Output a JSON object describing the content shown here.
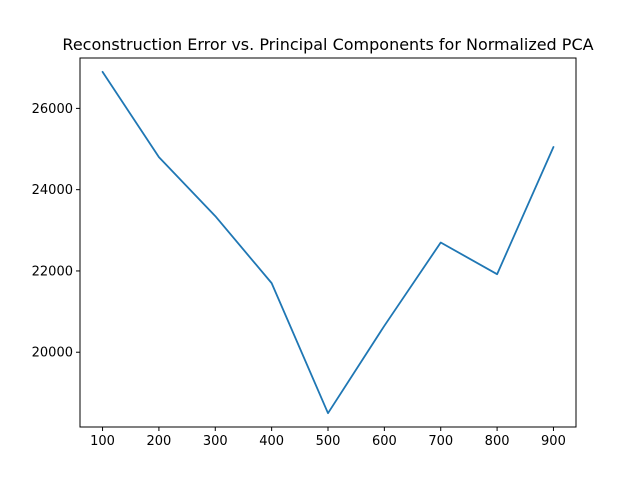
{
  "chart_data": {
    "type": "line",
    "title": "Reconstruction Error vs. Principal Components for Normalized PCA",
    "xlabel": "",
    "ylabel": "",
    "x": [
      100,
      200,
      300,
      400,
      500,
      600,
      700,
      800,
      900
    ],
    "series": [
      {
        "values": [
          26900,
          24800,
          23350,
          21700,
          18500,
          20650,
          22700,
          21920,
          25050
        ],
        "color": "#1f77b4"
      }
    ],
    "xlim": [
      60,
      940
    ],
    "ylim": [
      18160,
      27240
    ],
    "x_ticks": [
      100,
      200,
      300,
      400,
      500,
      600,
      700,
      800,
      900
    ],
    "y_ticks": [
      20000,
      22000,
      24000,
      26000
    ],
    "grid": false,
    "legend": "none"
  }
}
